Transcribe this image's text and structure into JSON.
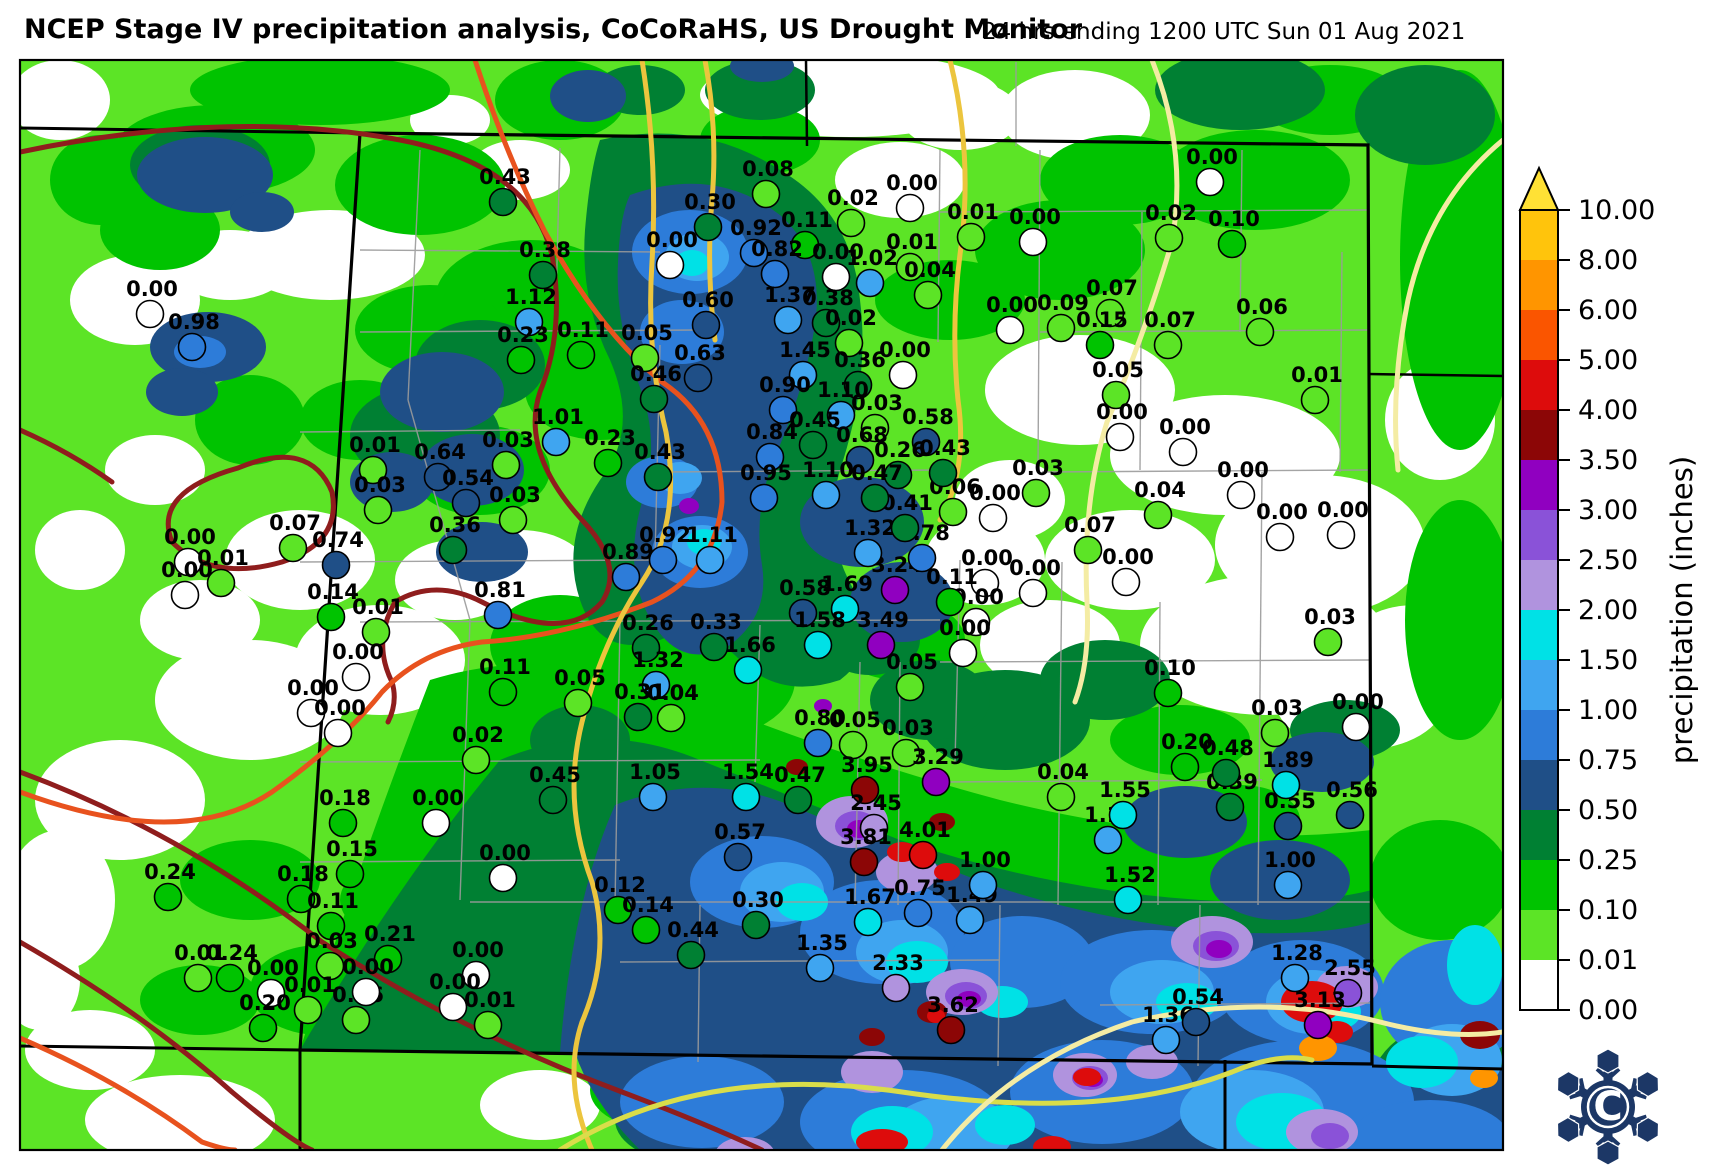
{
  "header": {
    "title": "NCEP Stage IV precipitation analysis, CoCoRaHS, US Drought Monitor",
    "subtitle": "24 hrs ending 1200 UTC Sun 01 Aug 2021"
  },
  "colorbar": {
    "title": "precipitation (inches)",
    "tick_labels_top_to_bottom": [
      "10.00",
      "8.00",
      "6.00",
      "5.00",
      "4.00",
      "3.50",
      "3.00",
      "2.50",
      "2.00",
      "1.50",
      "1.00",
      "0.75",
      "0.50",
      "0.25",
      "0.10",
      "0.01",
      "0.00"
    ],
    "thresholds": [
      0.01,
      0.1,
      0.25,
      0.5,
      0.75,
      1.0,
      1.5,
      2.0,
      2.5,
      3.0,
      3.5,
      4.0,
      5.0,
      6.0,
      8.0,
      10.0
    ],
    "colors_low_to_high": [
      "#ffffff",
      "#5ce426",
      "#00c300",
      "#008033",
      "#1f4f87",
      "#2d7cd9",
      "#3fa5f0",
      "#00e1e6",
      "#b093de",
      "#8a52d8",
      "#9000c0",
      "#8c0606",
      "#dd0c0c",
      "#fa5500",
      "#ff9500",
      "#ffc40c"
    ],
    "over_color": "#ffe135"
  },
  "drought_contours": {
    "line_colors": [
      "#8f1d1d",
      "#e8521e",
      "#ecc53e",
      "#d9dd4a",
      "#f4eca4"
    ]
  },
  "logo": {
    "name": "CoCoRaHS snowflake",
    "letter": "C",
    "color": "#1c3766"
  },
  "map": {
    "stations": [
      [
        "0.43",
        505,
        177
      ],
      [
        "0.00",
        152,
        289
      ],
      [
        "0.98",
        194,
        322
      ],
      [
        "0.38",
        545,
        250
      ],
      [
        "1.12",
        531,
        297
      ],
      [
        "0.23",
        523,
        335
      ],
      [
        "0.11",
        583,
        330
      ],
      [
        "0.05",
        647,
        333
      ],
      [
        "0.00",
        672,
        240
      ],
      [
        "0.63",
        700,
        353
      ],
      [
        "0.46",
        656,
        374
      ],
      [
        "1.01",
        558,
        417
      ],
      [
        "0.03",
        508,
        440
      ],
      [
        "0.23",
        610,
        438
      ],
      [
        "0.43",
        660,
        452
      ],
      [
        "0.01",
        375,
        445
      ],
      [
        "0.64",
        440,
        452
      ],
      [
        "0.54",
        468,
        478
      ],
      [
        "0.03",
        380,
        485
      ],
      [
        "0.03",
        515,
        495
      ],
      [
        "0.36",
        455,
        525
      ],
      [
        "0.07",
        295,
        523
      ],
      [
        "0.74",
        338,
        540
      ],
      [
        "0.00",
        190,
        537
      ],
      [
        "0.01",
        223,
        558
      ],
      [
        "0.00",
        187,
        570
      ],
      [
        "0.14",
        333,
        592
      ],
      [
        "0.89",
        628,
        552
      ],
      [
        "0.92",
        665,
        535
      ],
      [
        "1.11",
        712,
        535
      ],
      [
        "0.81",
        500,
        590
      ],
      [
        "0.01",
        378,
        607
      ],
      [
        "0.26",
        648,
        623
      ],
      [
        "0.33",
        716,
        622
      ],
      [
        "1.66",
        750,
        645
      ],
      [
        "1.32",
        658,
        660
      ],
      [
        "0.11",
        505,
        667
      ],
      [
        "0.05",
        580,
        678
      ],
      [
        "0.31",
        640,
        692
      ],
      [
        "0.04",
        673,
        693
      ],
      [
        "0.02",
        478,
        735
      ],
      [
        "0.45",
        555,
        775
      ],
      [
        "1.05",
        655,
        772
      ],
      [
        "0.00",
        313,
        688
      ],
      [
        "0.00",
        340,
        708
      ],
      [
        "0.00",
        358,
        652
      ],
      [
        "0.18",
        345,
        798
      ],
      [
        "0.00",
        438,
        798
      ],
      [
        "0.15",
        352,
        849
      ],
      [
        "0.18",
        303,
        874
      ],
      [
        "0.24",
        170,
        872
      ],
      [
        "0.11",
        333,
        901
      ],
      [
        "0.21",
        390,
        934
      ],
      [
        "0.03",
        332,
        941
      ],
      [
        "0.01",
        200,
        953
      ],
      [
        "0.24",
        232,
        953
      ],
      [
        "0.00",
        273,
        968
      ],
      [
        "0.01",
        310,
        985
      ],
      [
        "0.20",
        265,
        1003
      ],
      [
        "0.06",
        358,
        995
      ],
      [
        "0.00",
        368,
        967
      ],
      [
        "0.00",
        478,
        950
      ],
      [
        "0.00",
        455,
        982
      ],
      [
        "0.01",
        490,
        1000
      ],
      [
        "0.12",
        620,
        885
      ],
      [
        "0.14",
        648,
        905
      ],
      [
        "0.30",
        758,
        900
      ],
      [
        "0.44",
        693,
        930
      ],
      [
        "0.00",
        505,
        853
      ],
      [
        "1.35",
        822,
        943
      ],
      [
        "2.33",
        898,
        963
      ],
      [
        "3.62",
        953,
        1005
      ],
      [
        "1.67",
        870,
        897
      ],
      [
        "0.75",
        920,
        888
      ],
      [
        "1.49",
        972,
        895
      ],
      [
        "1.00",
        985,
        860
      ],
      [
        "1.36",
        1168,
        1015
      ],
      [
        "0.54",
        1198,
        997
      ],
      [
        "1.28",
        1297,
        953
      ],
      [
        "2.55",
        1350,
        968
      ],
      [
        "3.13",
        1320,
        1000
      ],
      [
        "1.52",
        1130,
        875
      ],
      [
        "1.10",
        1110,
        815
      ],
      [
        "1.55",
        1125,
        790
      ],
      [
        "0.04",
        1063,
        772
      ],
      [
        "1.00",
        1290,
        860
      ],
      [
        "0.39",
        1232,
        782
      ],
      [
        "0.55",
        1290,
        801
      ],
      [
        "0.56",
        1352,
        790
      ],
      [
        "1.89",
        1288,
        760
      ],
      [
        "0.48",
        1228,
        748
      ],
      [
        "0.20",
        1187,
        742
      ],
      [
        "0.10",
        1170,
        668
      ],
      [
        "0.03",
        1277,
        708
      ],
      [
        "0.00",
        1358,
        702
      ],
      [
        "0.03",
        1330,
        617
      ],
      [
        "0.10",
        1234,
        219
      ],
      [
        "0.02",
        1171,
        213
      ],
      [
        "0.00",
        1212,
        157
      ],
      [
        "0.00",
        1035,
        217
      ],
      [
        "0.07",
        1112,
        288
      ],
      [
        "0.09",
        1063,
        303
      ],
      [
        "0.00",
        1012,
        305
      ],
      [
        "0.15",
        1102,
        320
      ],
      [
        "0.07",
        1170,
        320
      ],
      [
        "0.06",
        1262,
        307
      ],
      [
        "0.01",
        1317,
        375
      ],
      [
        "0.05",
        1118,
        370
      ],
      [
        "0.00",
        1122,
        412
      ],
      [
        "0.00",
        1185,
        427
      ],
      [
        "0.00",
        1243,
        470
      ],
      [
        "0.04",
        1160,
        490
      ],
      [
        "0.00",
        1282,
        512
      ],
      [
        "0.00",
        1343,
        510
      ],
      [
        "0.07",
        1090,
        525
      ],
      [
        "0.00",
        1128,
        557
      ],
      [
        "0.03",
        1038,
        468
      ],
      [
        "0.00",
        1035,
        568
      ],
      [
        "0.00",
        987,
        558
      ],
      [
        "0.00",
        978,
        597
      ],
      [
        "0.11",
        952,
        577
      ],
      [
        "3.24",
        897,
        565
      ],
      [
        "1.69",
        847,
        584
      ],
      [
        "0.58",
        805,
        588
      ],
      [
        "1.58",
        820,
        620
      ],
      [
        "3.49",
        883,
        620
      ],
      [
        "1.32",
        870,
        528
      ],
      [
        "0.78",
        924,
        533
      ],
      [
        "0.41",
        907,
        503
      ],
      [
        "0.06",
        955,
        487
      ],
      [
        "0.00",
        995,
        493
      ],
      [
        "0.00",
        965,
        628
      ],
      [
        "0.05",
        912,
        662
      ],
      [
        "0.80",
        820,
        718
      ],
      [
        "0.05",
        855,
        720
      ],
      [
        "0.03",
        908,
        728
      ],
      [
        "3.95",
        867,
        765
      ],
      [
        "3.29",
        938,
        757
      ],
      [
        "1.54",
        748,
        772
      ],
      [
        "0.47",
        800,
        775
      ],
      [
        "2.45",
        876,
        803
      ],
      [
        "0.57",
        740,
        832
      ],
      [
        "3.81",
        866,
        837
      ],
      [
        "4.01",
        925,
        830
      ],
      [
        "0.08",
        768,
        169
      ],
      [
        "0.30",
        710,
        202
      ],
      [
        "0.92",
        756,
        228
      ],
      [
        "0.11",
        807,
        220
      ],
      [
        "0.82",
        777,
        249
      ],
      [
        "0.02",
        853,
        198
      ],
      [
        "0.00",
        912,
        183
      ],
      [
        "0.01",
        973,
        212
      ],
      [
        "0.01",
        912,
        242
      ],
      [
        "0.00",
        838,
        252
      ],
      [
        "1.02",
        872,
        258
      ],
      [
        "0.04",
        930,
        270
      ],
      [
        "1.37",
        790,
        295
      ],
      [
        "0.38",
        828,
        298
      ],
      [
        "0.02",
        851,
        318
      ],
      [
        "0.60",
        708,
        300
      ],
      [
        "1.45",
        805,
        350
      ],
      [
        "0.36",
        860,
        360
      ],
      [
        "0.00",
        905,
        350
      ],
      [
        "0.90",
        785,
        385
      ],
      [
        "1.10",
        843,
        390
      ],
      [
        "0.03",
        877,
        403
      ],
      [
        "0.58",
        928,
        417
      ],
      [
        "0.84",
        772,
        432
      ],
      [
        "0.45",
        815,
        420
      ],
      [
        "0.68",
        862,
        435
      ],
      [
        "0.26",
        900,
        450
      ],
      [
        "0.43",
        945,
        448
      ],
      [
        "0.95",
        766,
        473
      ],
      [
        "1.10",
        828,
        470
      ],
      [
        "0.47",
        877,
        473
      ]
    ]
  }
}
